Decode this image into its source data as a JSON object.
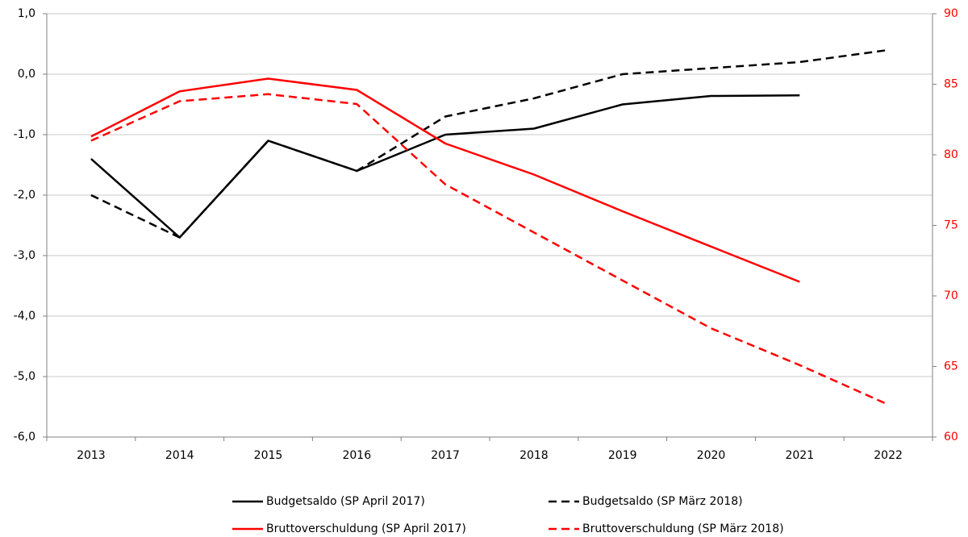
{
  "chart_data": {
    "type": "line",
    "categories": [
      "2013",
      "2014",
      "2015",
      "2016",
      "2017",
      "2018",
      "2019",
      "2020",
      "2021",
      "2022"
    ],
    "ylim": [
      -6,
      1
    ],
    "yticks": [
      {
        "value": -6,
        "label": "-6,0"
      },
      {
        "value": -5,
        "label": "-5,0"
      },
      {
        "value": -4,
        "label": "-4,0"
      },
      {
        "value": -3,
        "label": "-3,0"
      },
      {
        "value": -2,
        "label": "-2,0"
      },
      {
        "value": -1,
        "label": "-1,0"
      },
      {
        "value": 0,
        "label": "0,0"
      },
      {
        "value": 1,
        "label": "1,0"
      }
    ],
    "y2lim": [
      60,
      90
    ],
    "y2ticks": [
      60,
      65,
      70,
      75,
      80,
      85,
      90
    ],
    "y2_color": "#ff0000",
    "grid": true,
    "legend": "bottom",
    "series": [
      {
        "name": "Budgetsaldo (SP April 2017)",
        "color": "#000000",
        "style": "solid",
        "values": [
          -1.4,
          -2.7,
          -1.1,
          -1.6,
          -1.0,
          -0.9,
          -0.5,
          -0.36,
          -0.35,
          null
        ]
      },
      {
        "name": "Budgetsaldo (SP März 2018)",
        "color": "#000000",
        "style": "dashed",
        "values": [
          -2.0,
          -2.7,
          -1.1,
          -1.6,
          -0.7,
          -0.4,
          0.0,
          0.1,
          0.2,
          0.4
        ]
      },
      {
        "name": "Bruttoverschuldung (SP April 2017)",
        "color": "#ff0000",
        "style": "solid",
        "axis": "y2",
        "values": [
          81.3,
          84.5,
          85.4,
          84.6,
          80.8,
          78.6,
          76.0,
          73.5,
          71.0,
          null
        ]
      },
      {
        "name": "Bruttoverschuldung (SP März 2018)",
        "color": "#ff0000",
        "style": "dashed",
        "axis": "y2",
        "values": [
          81.0,
          83.8,
          84.3,
          83.6,
          77.9,
          74.5,
          71.1,
          67.7,
          65.1,
          62.3
        ]
      }
    ]
  }
}
